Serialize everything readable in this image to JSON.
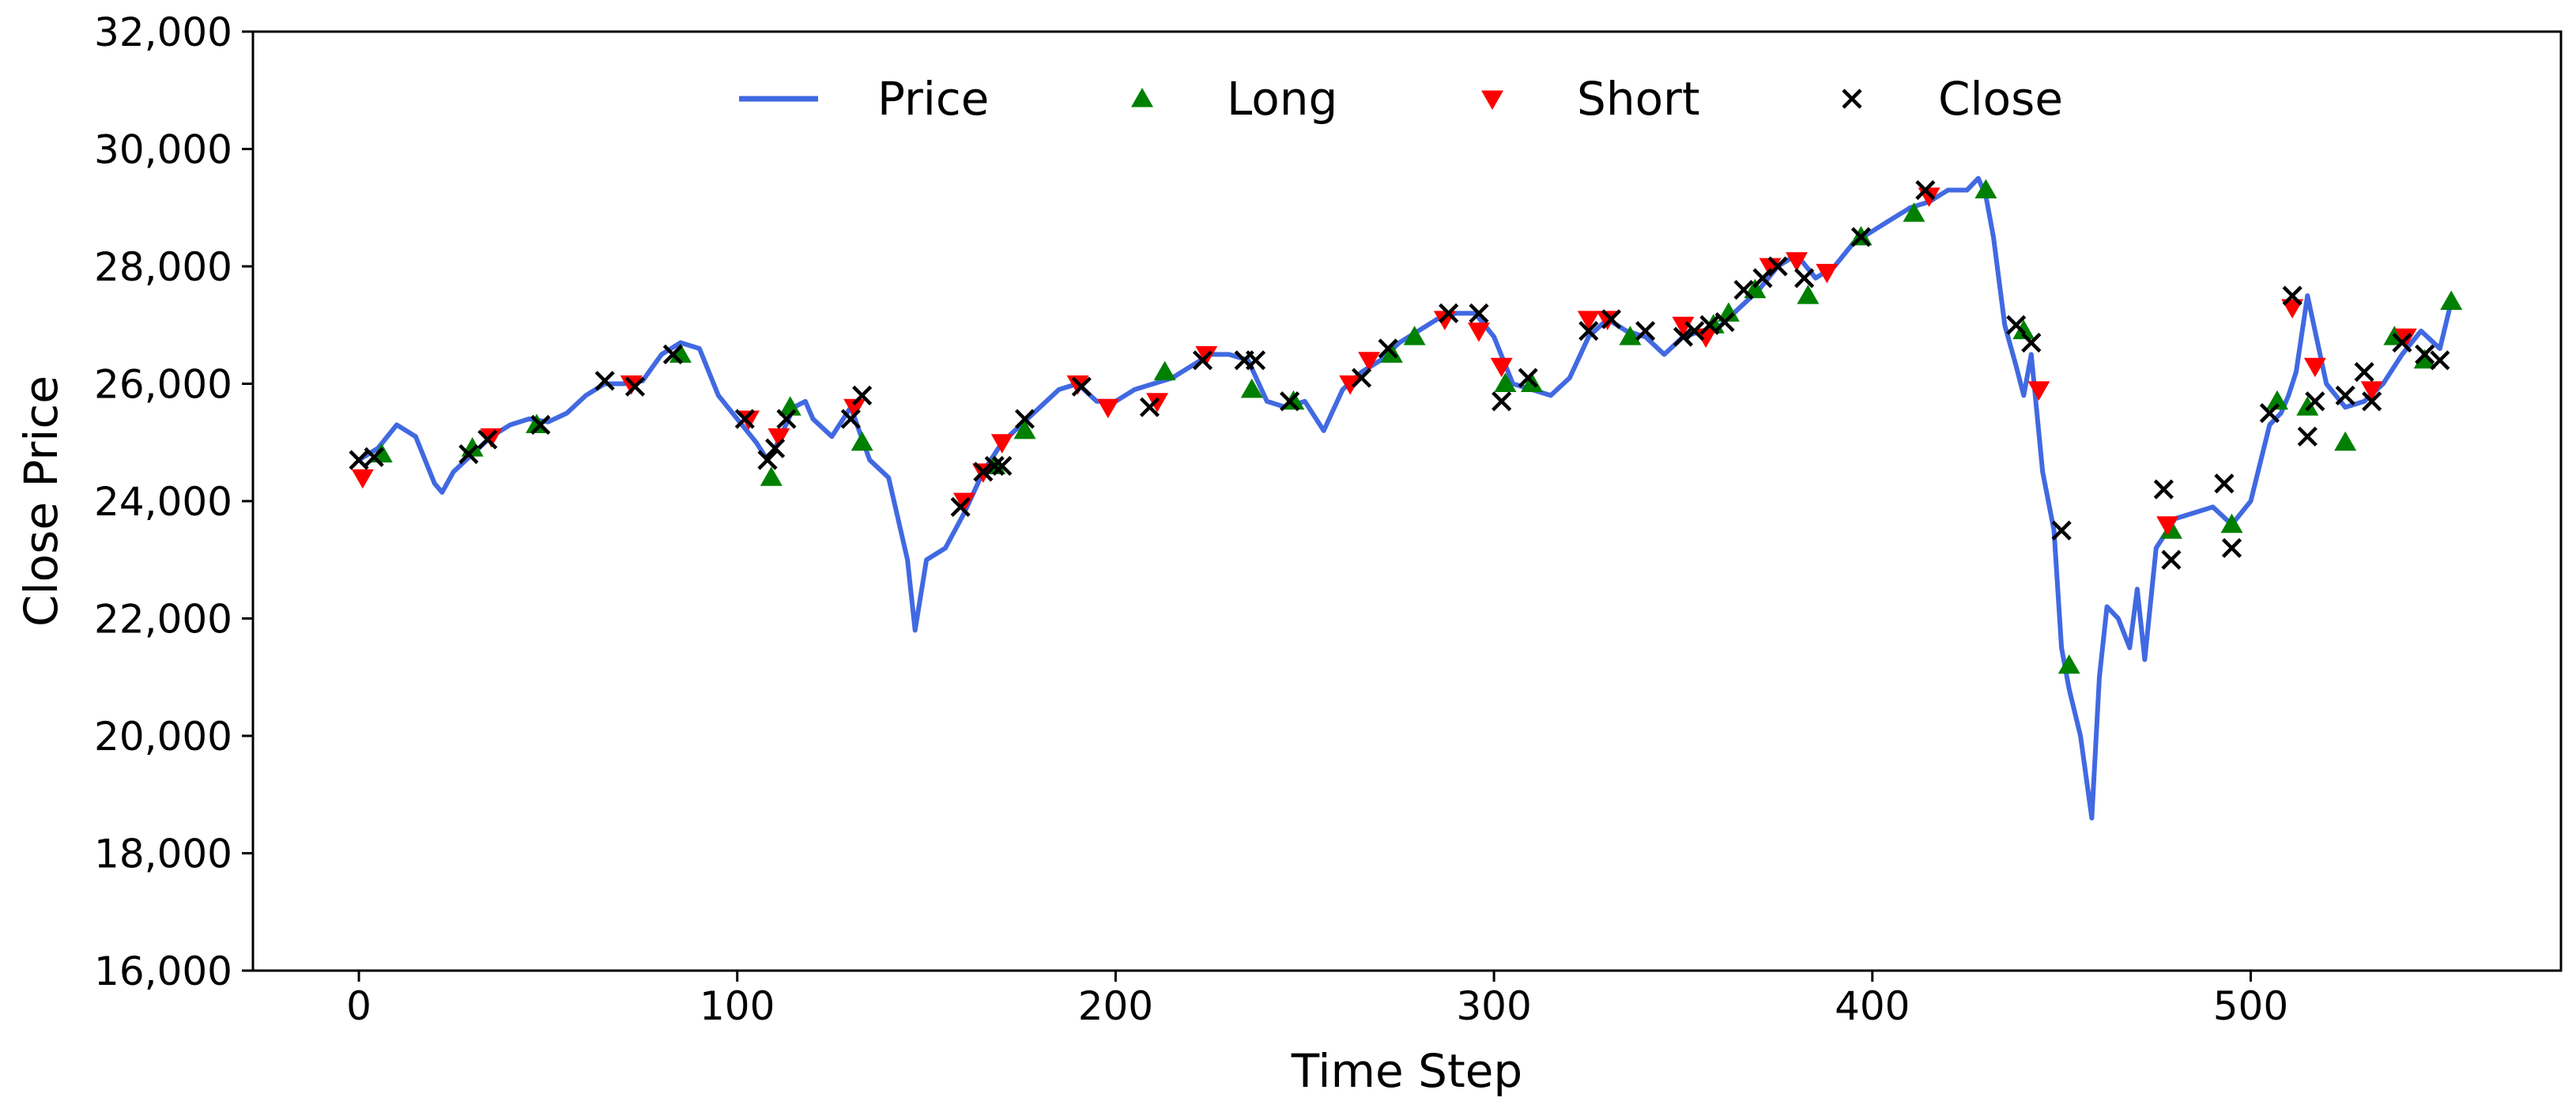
{
  "chart_data": {
    "type": "line",
    "xlabel": "Time Step",
    "ylabel": "Close Price",
    "xlim": [
      -28,
      582
    ],
    "ylim": [
      16000,
      32000
    ],
    "xticks": [
      0,
      100,
      200,
      300,
      400,
      500
    ],
    "xtick_labels": [
      "0",
      "100",
      "200",
      "300",
      "400",
      "500"
    ],
    "yticks": [
      16000,
      18000,
      20000,
      22000,
      24000,
      26000,
      28000,
      30000,
      32000
    ],
    "ytick_labels": [
      "16,000",
      "18,000",
      "20,000",
      "22,000",
      "24,000",
      "26,000",
      "28,000",
      "30,000",
      "32,000"
    ],
    "grid": false,
    "legend": {
      "placement": "top-center",
      "entries": [
        {
          "label": "Price",
          "marker": "line",
          "color": "#4169e1"
        },
        {
          "label": "Long",
          "marker": "triangle-up",
          "color": "#008000"
        },
        {
          "label": "Short",
          "marker": "triangle-down",
          "color": "#ff0000"
        },
        {
          "label": "Close",
          "marker": "x",
          "color": "#000000"
        }
      ]
    },
    "series": [
      {
        "name": "Price",
        "color": "#4169e1",
        "x": [
          0,
          5,
          10,
          15,
          20,
          22,
          25,
          30,
          35,
          40,
          45,
          50,
          55,
          60,
          65,
          70,
          75,
          80,
          85,
          90,
          95,
          100,
          105,
          108,
          110,
          115,
          118,
          120,
          125,
          128,
          130,
          135,
          140,
          145,
          147,
          150,
          155,
          160,
          165,
          170,
          175,
          180,
          185,
          190,
          195,
          200,
          205,
          210,
          215,
          220,
          225,
          230,
          235,
          240,
          245,
          250,
          255,
          260,
          265,
          270,
          275,
          280,
          285,
          290,
          295,
          300,
          305,
          310,
          315,
          320,
          325,
          330,
          335,
          340,
          345,
          350,
          355,
          360,
          365,
          370,
          375,
          380,
          385,
          390,
          395,
          400,
          405,
          410,
          415,
          420,
          425,
          428,
          430,
          432,
          435,
          438,
          440,
          442,
          445,
          448,
          450,
          452,
          455,
          458,
          460,
          462,
          465,
          468,
          470,
          472,
          475,
          478,
          480,
          485,
          490,
          495,
          500,
          505,
          508,
          510,
          512,
          515,
          520,
          525,
          530,
          535,
          540,
          545,
          550,
          553
        ],
        "y": [
          24700,
          24900,
          25300,
          25100,
          24300,
          24150,
          24500,
          24800,
          25100,
          25300,
          25400,
          25350,
          25500,
          25800,
          26000,
          26000,
          26050,
          26500,
          26700,
          26600,
          25800,
          25400,
          25000,
          24700,
          24900,
          25600,
          25700,
          25400,
          25100,
          25400,
          25600,
          24700,
          24400,
          23000,
          21800,
          23000,
          23200,
          23800,
          24500,
          25000,
          25300,
          25600,
          25900,
          26000,
          25700,
          25700,
          25900,
          26000,
          26100,
          26300,
          26500,
          26500,
          26400,
          25700,
          25600,
          25700,
          25200,
          25900,
          26200,
          26400,
          26700,
          26900,
          27100,
          27200,
          27200,
          26800,
          26000,
          25900,
          25800,
          26100,
          26800,
          27100,
          26900,
          26800,
          26500,
          26800,
          26900,
          27000,
          27300,
          27600,
          28000,
          28200,
          27800,
          28000,
          28400,
          28600,
          28800,
          29000,
          29100,
          29300,
          29300,
          29500,
          29200,
          28500,
          27000,
          26300,
          25800,
          26500,
          24500,
          23500,
          21500,
          20800,
          20000,
          18600,
          21000,
          22200,
          22000,
          21500,
          22500,
          21300,
          23200,
          23500,
          23700,
          23800,
          23900,
          23600,
          24000,
          25300,
          25500,
          25800,
          26200,
          27500,
          26000,
          25600,
          25700,
          26000,
          26500,
          26900,
          26600,
          27400
        ]
      },
      {
        "name": "Long",
        "color": "#008000",
        "x": [
          6,
          30,
          47,
          85,
          109,
          114,
          133,
          168,
          176,
          213,
          236,
          247,
          273,
          279,
          303,
          310,
          336,
          358,
          362,
          369,
          383,
          397,
          411,
          430,
          440,
          452,
          479,
          495,
          507,
          515,
          525,
          538,
          546,
          553
        ],
        "y": [
          24800,
          24900,
          25300,
          26500,
          24400,
          25600,
          25000,
          24600,
          25200,
          26200,
          25900,
          25700,
          26500,
          26800,
          26000,
          26000,
          26800,
          27000,
          27200,
          27600,
          27500,
          28500,
          28900,
          29300,
          26900,
          21200,
          23500,
          23600,
          25700,
          25600,
          25000,
          26800,
          26400,
          27400
        ]
      },
      {
        "name": "Short",
        "color": "#ff0000",
        "x": [
          1,
          35,
          72,
          103,
          111,
          131,
          160,
          165,
          170,
          190,
          198,
          211,
          224,
          262,
          267,
          287,
          296,
          302,
          325,
          330,
          350,
          356,
          373,
          380,
          388,
          415,
          444,
          478,
          511,
          517,
          532,
          541
        ],
        "y": [
          24400,
          25100,
          26000,
          25400,
          25100,
          25600,
          24000,
          24500,
          25000,
          26000,
          25600,
          25700,
          26500,
          26000,
          26400,
          27100,
          26900,
          26300,
          27100,
          27100,
          27000,
          26800,
          28000,
          28100,
          27900,
          29200,
          25900,
          23600,
          27300,
          26300,
          25900,
          26800
        ]
      },
      {
        "name": "Close",
        "color": "#000000",
        "x": [
          0,
          4,
          29,
          34,
          48,
          65,
          73,
          83,
          102,
          108,
          110,
          113,
          130,
          133,
          159,
          165,
          168,
          170,
          176,
          191,
          209,
          223,
          234,
          237,
          246,
          265,
          272,
          288,
          296,
          302,
          309,
          325,
          331,
          340,
          350,
          353,
          357,
          361,
          366,
          371,
          375,
          382,
          397,
          414,
          438,
          442,
          450,
          477,
          479,
          493,
          495,
          505,
          511,
          515,
          517,
          525,
          530,
          532,
          540,
          546,
          550
        ],
        "y": [
          24700,
          24750,
          24800,
          25050,
          25300,
          26050,
          25950,
          26500,
          25400,
          24700,
          24900,
          25400,
          25400,
          25800,
          23900,
          24500,
          24600,
          24600,
          25400,
          25950,
          25600,
          26400,
          26400,
          26400,
          25700,
          26100,
          26600,
          27200,
          27200,
          25700,
          26100,
          26900,
          27100,
          26900,
          26800,
          26900,
          27000,
          27050,
          27600,
          27800,
          28000,
          27800,
          28500,
          29300,
          27000,
          26700,
          23500,
          24200,
          23000,
          24300,
          23200,
          25500,
          27500,
          25100,
          25700,
          25800,
          26200,
          25700,
          26700,
          26500,
          26400
        ]
      }
    ]
  }
}
